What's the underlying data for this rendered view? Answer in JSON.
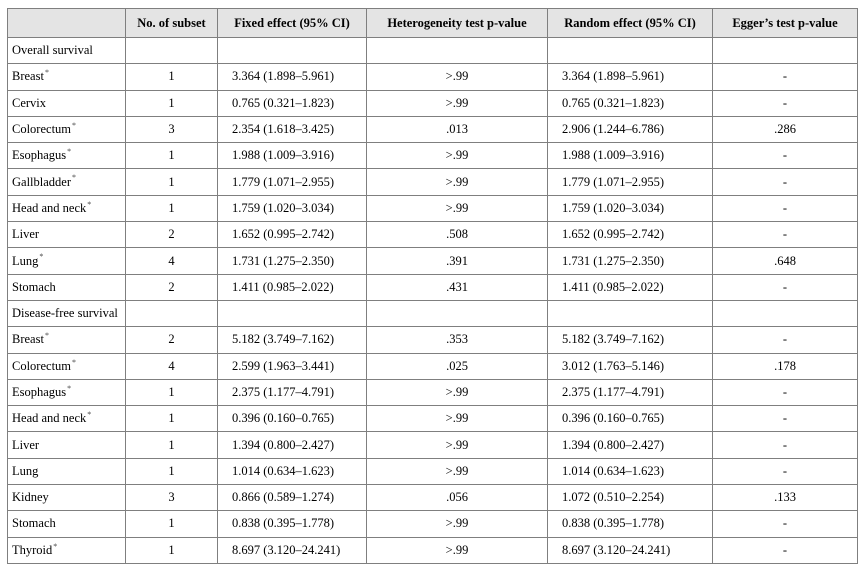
{
  "header": {
    "col0": "",
    "col1": "No. of subset",
    "col2": "Fixed effect (95% CI)",
    "col3": "Heterogeneity test p-value",
    "col4": "Random effect (95% CI)",
    "col5": "Egger’s test p-value"
  },
  "sections": [
    {
      "title": "Overall survival",
      "rows": [
        {
          "name": "Breast",
          "mark": "*",
          "n": "1",
          "fixed": "3.364 (1.898–5.961)",
          "het": ">.99",
          "random": "3.364 (1.898–5.961)",
          "egger": "-"
        },
        {
          "name": "Cervix",
          "mark": "",
          "n": "1",
          "fixed": "0.765 (0.321–1.823)",
          "het": ">.99",
          "random": "0.765 (0.321–1.823)",
          "egger": "-"
        },
        {
          "name": "Colorectum",
          "mark": "*",
          "n": "3",
          "fixed": "2.354 (1.618–3.425)",
          "het": ".013",
          "random": "2.906 (1.244–6.786)",
          "egger": ".286"
        },
        {
          "name": "Esophagus",
          "mark": "*",
          "n": "1",
          "fixed": "1.988 (1.009–3.916)",
          "het": ">.99",
          "random": "1.988 (1.009–3.916)",
          "egger": "-"
        },
        {
          "name": "Gallbladder",
          "mark": "*",
          "n": "1",
          "fixed": "1.779 (1.071–2.955)",
          "het": ">.99",
          "random": "1.779 (1.071–2.955)",
          "egger": "-"
        },
        {
          "name": "Head and neck",
          "mark": "*",
          "n": "1",
          "fixed": "1.759 (1.020–3.034)",
          "het": ">.99",
          "random": "1.759 (1.020–3.034)",
          "egger": "-"
        },
        {
          "name": "Liver",
          "mark": "",
          "n": "2",
          "fixed": "1.652 (0.995–2.742)",
          "het": ".508",
          "random": "1.652 (0.995–2.742)",
          "egger": "-"
        },
        {
          "name": "Lung",
          "mark": "*",
          "n": "4",
          "fixed": "1.731 (1.275–2.350)",
          "het": ".391",
          "random": "1.731 (1.275–2.350)",
          "egger": ".648"
        },
        {
          "name": "Stomach",
          "mark": "",
          "n": "2",
          "fixed": "1.411 (0.985–2.022)",
          "het": ".431",
          "random": "1.411 (0.985–2.022)",
          "egger": "-"
        }
      ]
    },
    {
      "title": "Disease-free survival",
      "rows": [
        {
          "name": "Breast",
          "mark": "*",
          "n": "2",
          "fixed": "5.182 (3.749–7.162)",
          "het": ".353",
          "random": "5.182 (3.749–7.162)",
          "egger": "-"
        },
        {
          "name": "Colorectum",
          "mark": "*",
          "n": "4",
          "fixed": "2.599 (1.963–3.441)",
          "het": ".025",
          "random": "3.012 (1.763–5.146)",
          "egger": ".178"
        },
        {
          "name": "Esophagus",
          "mark": "*",
          "n": "1",
          "fixed": "2.375 (1.177–4.791)",
          "het": ">.99",
          "random": "2.375 (1.177–4.791)",
          "egger": "-"
        },
        {
          "name": "Head and neck",
          "mark": "*",
          "n": "1",
          "fixed": "0.396 (0.160–0.765)",
          "het": ">.99",
          "random": "0.396 (0.160–0.765)",
          "egger": "-"
        },
        {
          "name": "Liver",
          "mark": "",
          "n": "1",
          "fixed": "1.394 (0.800–2.427)",
          "het": ">.99",
          "random": "1.394 (0.800–2.427)",
          "egger": "-"
        },
        {
          "name": "Lung",
          "mark": "",
          "n": "1",
          "fixed": "1.014 (0.634–1.623)",
          "het": ">.99",
          "random": "1.014 (0.634–1.623)",
          "egger": "-"
        },
        {
          "name": "Kidney",
          "mark": "",
          "n": "3",
          "fixed": "0.866 (0.589–1.274)",
          "het": ".056",
          "random": "1.072 (0.510–2.254)",
          "egger": ".133"
        },
        {
          "name": "Stomach",
          "mark": "",
          "n": "1",
          "fixed": "0.838 (0.395–1.778)",
          "het": ">.99",
          "random": "0.838 (0.395–1.778)",
          "egger": "-"
        },
        {
          "name": "Thyroid",
          "mark": "*",
          "n": "1",
          "fixed": "8.697 (3.120–24.241)",
          "het": ">.99",
          "random": "8.697 (3.120–24.241)",
          "egger": "-"
        }
      ]
    }
  ]
}
